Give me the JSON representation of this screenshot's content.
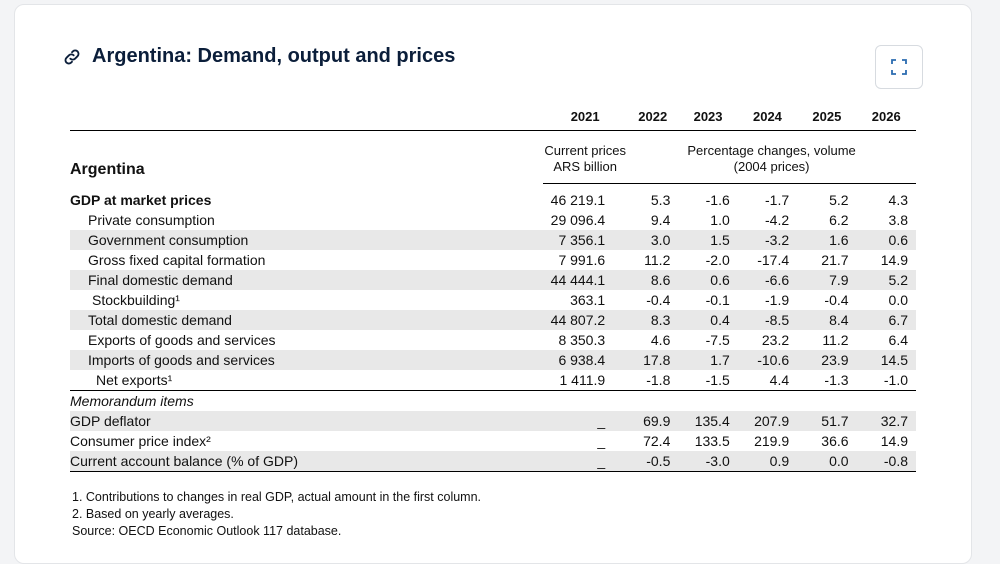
{
  "card": {
    "title": "Argentina: Demand, output and prices"
  },
  "table": {
    "years": [
      "2021",
      "2022",
      "2023",
      "2024",
      "2025",
      "2026"
    ],
    "row_header_label": "Argentina",
    "current_prices_label_1": "Current prices",
    "current_prices_label_2": "ARS billion",
    "pct_label_1": "Percentage changes, volume",
    "pct_label_2": "(2004 prices)",
    "rows": [
      {
        "label": "GDP at market prices",
        "cur": "46 219.1",
        "v": [
          "5.3",
          "-1.6",
          "-1.7",
          "5.2",
          "4.3"
        ]
      },
      {
        "label": "Private consumption",
        "cur": "29 096.4",
        "v": [
          "9.4",
          "1.0",
          "-4.2",
          "6.2",
          "3.8"
        ]
      },
      {
        "label": "Government consumption",
        "cur": "7 356.1",
        "v": [
          "3.0",
          "1.5",
          "-3.2",
          "1.6",
          "0.6"
        ]
      },
      {
        "label": "Gross fixed capital formation",
        "cur": "7 991.6",
        "v": [
          "11.2",
          "-2.0",
          "-17.4",
          "21.7",
          "14.9"
        ]
      },
      {
        "label": "Final domestic demand",
        "cur": "44 444.1",
        "v": [
          "8.6",
          "0.6",
          "-6.6",
          "7.9",
          "5.2"
        ]
      },
      {
        "label": "Stockbuilding¹",
        "cur": "363.1",
        "v": [
          "-0.4",
          "-0.1",
          "-1.9",
          "-0.4",
          "0.0"
        ]
      },
      {
        "label": "Total domestic demand",
        "cur": "44 807.2",
        "v": [
          "8.3",
          "0.4",
          "-8.5",
          "8.4",
          "6.7"
        ]
      },
      {
        "label": "Exports of goods and services",
        "cur": "8 350.3",
        "v": [
          "4.6",
          "-7.5",
          "23.2",
          "11.2",
          "6.4"
        ]
      },
      {
        "label": "Imports of goods and services",
        "cur": "6 938.4",
        "v": [
          "17.8",
          "1.7",
          "-10.6",
          "23.9",
          "14.5"
        ]
      },
      {
        "label": "Net exports¹",
        "cur": "1 411.9",
        "v": [
          "-1.8",
          "-1.5",
          "4.4",
          "-1.3",
          "-1.0"
        ]
      }
    ],
    "memo_label": "Memorandum items",
    "memo_rows": [
      {
        "label": "GDP deflator",
        "cur": "_",
        "v": [
          "69.9",
          "135.4",
          "207.9",
          "51.7",
          "32.7"
        ]
      },
      {
        "label": "Consumer price index²",
        "cur": "_",
        "v": [
          "72.4",
          "133.5",
          "219.9",
          "36.6",
          "14.9"
        ]
      },
      {
        "label": "Current account balance (% of GDP)",
        "cur": "_",
        "v": [
          "-0.5",
          "-3.0",
          "0.9",
          "0.0",
          "-0.8"
        ]
      }
    ]
  },
  "notes": [
    "1. Contributions to changes in real GDP, actual amount in the first column.",
    "2. Based on yearly averages.",
    "Source: OECD Economic Outlook 117 database."
  ]
}
